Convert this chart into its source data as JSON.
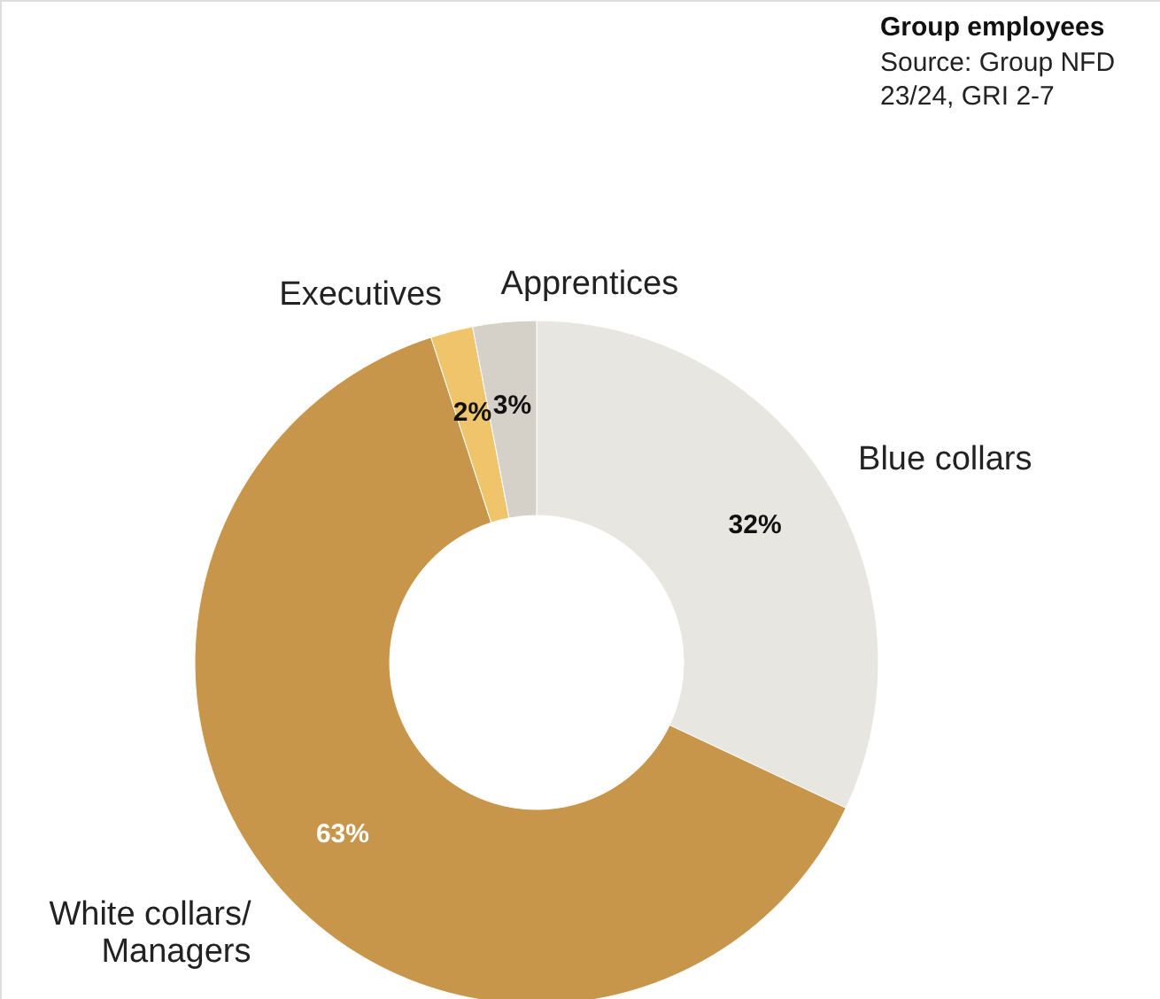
{
  "chart_data": {
    "type": "donut",
    "title": "Group employees",
    "annotations": [
      "Source: Group NFD 23/24, GRI 2-7"
    ],
    "categories": [
      "Blue collars",
      "White collars/ Managers",
      "Executives",
      "Apprentices"
    ],
    "values": [
      32,
      63,
      2,
      3
    ],
    "value_labels": [
      "32%",
      "63%",
      "2%",
      "3%"
    ],
    "colors": [
      "#e8e6e1",
      "#c8964a",
      "#f0c46a",
      "#d5d0c8"
    ]
  }
}
